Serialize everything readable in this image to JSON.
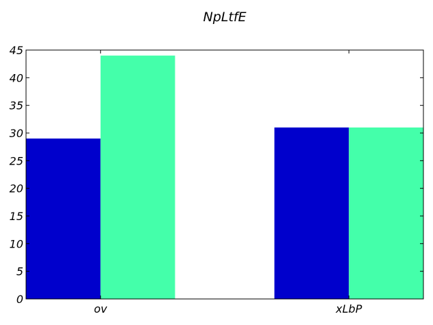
{
  "chart_data": {
    "type": "bar",
    "title": "NpLtfE",
    "xlabel": "",
    "ylabel": "",
    "categories": [
      "ov",
      "xLbP"
    ],
    "series": [
      {
        "values": [
          29,
          31
        ],
        "color": "#0000cc"
      },
      {
        "values": [
          44,
          31
        ],
        "color": "#44ffaa"
      }
    ],
    "ylim": [
      0,
      45
    ],
    "yticks": [
      0,
      5,
      10,
      15,
      20,
      25,
      30,
      35,
      40,
      45
    ],
    "grid": false,
    "legend": "none"
  }
}
